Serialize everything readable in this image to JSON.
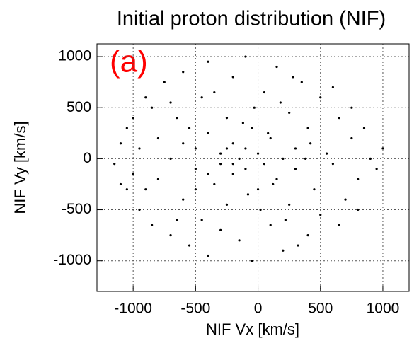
{
  "chart_data": {
    "type": "scatter",
    "title": "Initial proton distribution (NIF)",
    "annotation": "(a)",
    "x_label": "NIF Vx [km/s]",
    "y_label": "NIF Vy [km/s]",
    "xlim": [
      -1290,
      1210
    ],
    "ylim": [
      -1300,
      1125
    ],
    "xticks": [
      -1000,
      -500,
      0,
      500,
      1000
    ],
    "yticks": [
      -1000,
      -500,
      0,
      500,
      1000
    ],
    "grid": true,
    "series": [
      {
        "color": "#000000",
        "x": [
          -1150,
          -1100,
          -1050,
          -1000,
          -950,
          -900,
          -850,
          -800,
          -800,
          -750,
          -700,
          -700,
          -650,
          -600,
          -600,
          -550,
          -500,
          -500,
          -450,
          -450,
          -400,
          -400,
          -400,
          -350,
          -300,
          -300,
          -250,
          -250,
          -200,
          -200,
          -200,
          -150,
          -150,
          -100,
          -100,
          -100,
          -50,
          -50,
          0,
          0,
          50,
          50,
          100,
          100,
          150,
          150,
          200,
          200,
          250,
          250,
          300,
          300,
          350,
          400,
          400,
          450,
          500,
          500,
          550,
          600,
          650,
          700,
          750,
          800,
          850,
          900,
          950,
          1000,
          -850,
          -900,
          -700,
          -650,
          -550,
          -500,
          -350,
          -300,
          -250,
          -200,
          -120,
          -80,
          -30,
          20,
          80,
          120,
          180,
          220,
          280,
          320,
          380,
          420,
          600,
          650,
          750,
          800,
          -950,
          -1000,
          -1100,
          -1050,
          -600,
          -400
        ],
        "y": [
          -50,
          150,
          -300,
          400,
          -500,
          600,
          -650,
          200,
          -200,
          750,
          -750,
          0,
          400,
          -400,
          850,
          -850,
          100,
          -100,
          600,
          -600,
          950,
          -950,
          250,
          -250,
          50,
          -50,
          400,
          -450,
          150,
          -150,
          800,
          -800,
          0,
          100,
          -100,
          1000,
          -1000,
          300,
          -300,
          50,
          -50,
          650,
          -650,
          200,
          -200,
          900,
          -900,
          0,
          450,
          -450,
          100,
          -100,
          750,
          -750,
          300,
          -300,
          600,
          -550,
          50,
          -50,
          400,
          -400,
          200,
          -200,
          300,
          0,
          -100,
          100,
          500,
          -300,
          550,
          -600,
          300,
          -300,
          650,
          -700,
          100,
          -50,
          350,
          -350,
          500,
          -500,
          250,
          -250,
          550,
          -600,
          800,
          -850,
          0,
          150,
          700,
          -650,
          500,
          -500,
          100,
          -150,
          -250,
          300,
          150,
          -150
        ]
      }
    ]
  }
}
